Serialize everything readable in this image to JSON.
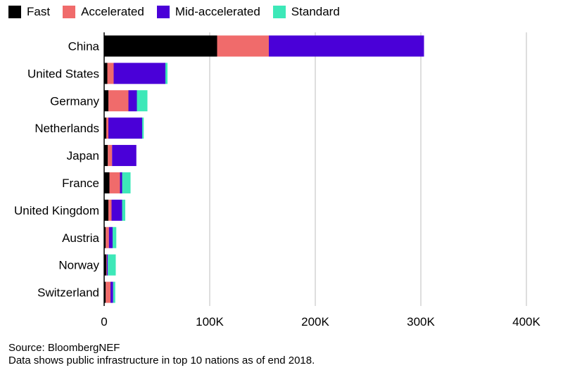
{
  "chart_data": {
    "type": "bar",
    "orientation": "horizontal",
    "stacked": true,
    "categories": [
      "China",
      "United States",
      "Germany",
      "Netherlands",
      "Japan",
      "France",
      "United Kingdom",
      "Austria",
      "Norway",
      "Switzerland"
    ],
    "series": [
      {
        "name": "Fast",
        "color": "#000000",
        "values": [
          107000,
          3000,
          4000,
          2000,
          3500,
          5000,
          4000,
          1500,
          2000,
          1500
        ]
      },
      {
        "name": "Accelerated",
        "color": "#f06b6b",
        "values": [
          49000,
          6000,
          19000,
          2000,
          4000,
          10000,
          3000,
          3000,
          500,
          4500
        ]
      },
      {
        "name": "Mid-accelerated",
        "color": "#4a00d8",
        "values": [
          147000,
          49000,
          8000,
          32000,
          23000,
          2000,
          10000,
          3500,
          1000,
          2500
        ]
      },
      {
        "name": "Standard",
        "color": "#3de8b8",
        "values": [
          0,
          2000,
          10000,
          1500,
          0,
          8000,
          3000,
          3500,
          7500,
          2000
        ]
      }
    ],
    "xticks": [
      "0",
      "100K",
      "200K",
      "300K",
      "400K"
    ],
    "xlim": [
      0,
      400000
    ],
    "grid": true,
    "legend_position": "top-left"
  },
  "source": {
    "line1": "Source: BloombergNEF",
    "line2": "Data shows public infrastructure in top 10 nations as of end 2018."
  }
}
